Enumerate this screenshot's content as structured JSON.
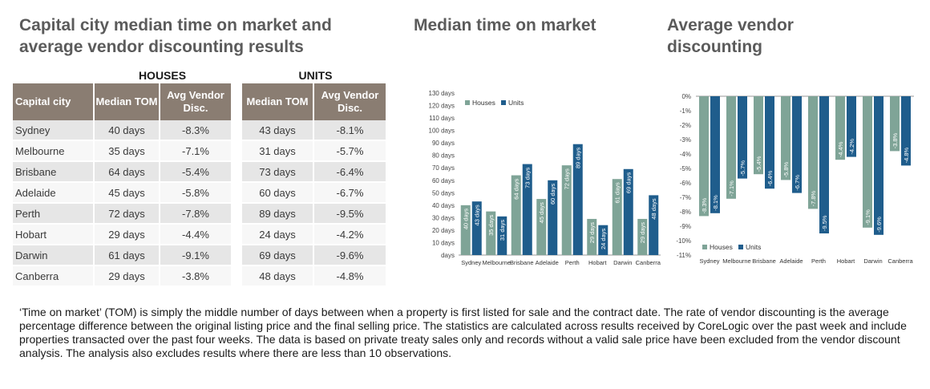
{
  "header": {
    "main_title": "Capital city median time on market and average vendor discounting results",
    "houses_label": "HOUSES",
    "units_label": "UNITS"
  },
  "table": {
    "col_city": "Capital city",
    "col_median_tom": "Median TOM",
    "col_avg_disc": "Avg Vendor Disc.",
    "rows": [
      {
        "city": "Sydney",
        "h_tom": "40 days",
        "h_disc": "-8.3%",
        "u_tom": "43 days",
        "u_disc": "-8.1%"
      },
      {
        "city": "Melbourne",
        "h_tom": "35 days",
        "h_disc": "-7.1%",
        "u_tom": "31 days",
        "u_disc": "-5.7%"
      },
      {
        "city": "Brisbane",
        "h_tom": "64 days",
        "h_disc": "-5.4%",
        "u_tom": "73 days",
        "u_disc": "-6.4%"
      },
      {
        "city": "Adelaide",
        "h_tom": "45 days",
        "h_disc": "-5.8%",
        "u_tom": "60 days",
        "u_disc": "-6.7%"
      },
      {
        "city": "Perth",
        "h_tom": "72 days",
        "h_disc": "-7.8%",
        "u_tom": "89 days",
        "u_disc": "-9.5%"
      },
      {
        "city": "Hobart",
        "h_tom": "29 days",
        "h_disc": "-4.4%",
        "u_tom": "24 days",
        "u_disc": "-4.2%"
      },
      {
        "city": "Darwin",
        "h_tom": "61 days",
        "h_disc": "-9.1%",
        "u_tom": "69 days",
        "u_disc": "-9.6%"
      },
      {
        "city": "Canberra",
        "h_tom": "29 days",
        "h_disc": "-3.8%",
        "u_tom": "48 days",
        "u_disc": "-4.8%"
      }
    ]
  },
  "colors": {
    "houses": "#7fa497",
    "units": "#1f5d8c",
    "header_bg": "#8a7d72"
  },
  "chart_data": [
    {
      "type": "bar",
      "title": "Median time on market",
      "categories": [
        "Sydney",
        "Melbourne",
        "Brisbane",
        "Adelaide",
        "Perth",
        "Hobart",
        "Darwin",
        "Canberra"
      ],
      "series": [
        {
          "name": "Houses",
          "values": [
            40,
            35,
            64,
            45,
            72,
            29,
            61,
            29
          ],
          "labels": [
            "40 days",
            "35 days",
            "64 days",
            "45 days",
            "72 days",
            "29 days",
            "61 days",
            "29 days"
          ]
        },
        {
          "name": "Units",
          "values": [
            43,
            31,
            73,
            60,
            89,
            24,
            69,
            48
          ],
          "labels": [
            "43 days",
            "31 days",
            "73 days",
            "60 days",
            "89 days",
            "24 days",
            "69 days",
            "48 days"
          ]
        }
      ],
      "ylim": [
        0,
        130
      ],
      "yticks": [
        "days",
        "10 days",
        "20 days",
        "30 days",
        "40 days",
        "50 days",
        "60 days",
        "70 days",
        "80 days",
        "90 days",
        "100 days",
        "110 days",
        "120 days",
        "130 days"
      ],
      "legend": "top-left",
      "xlabel": "",
      "ylabel": ""
    },
    {
      "type": "bar",
      "title": "Average vendor discounting",
      "categories": [
        "Sydney",
        "Melbourne",
        "Brisbane",
        "Adelaide",
        "Perth",
        "Hobart",
        "Darwin",
        "Canberra"
      ],
      "series": [
        {
          "name": "Houses",
          "values": [
            -8.3,
            -7.1,
            -5.4,
            -5.8,
            -7.8,
            -4.4,
            -9.1,
            -3.8
          ],
          "labels": [
            "-8.3%",
            "-7.1%",
            "-5.4%",
            "-5.8%",
            "-7.8%",
            "-4.4%",
            "-9.1%",
            "-3.8%"
          ]
        },
        {
          "name": "Units",
          "values": [
            -8.1,
            -5.7,
            -6.4,
            -6.7,
            -9.5,
            -4.2,
            -9.6,
            -4.8
          ],
          "labels": [
            "-8.1%",
            "-5.7%",
            "-6.4%",
            "-6.7%",
            "-9.5%",
            "-4.2%",
            "-9.6%",
            "-4.8%"
          ]
        }
      ],
      "ylim": [
        -11,
        0
      ],
      "yticks": [
        "0%",
        "-1%",
        "-2%",
        "-3%",
        "-4%",
        "-5%",
        "-6%",
        "-7%",
        "-8%",
        "-9%",
        "-10%",
        "-11%"
      ],
      "legend": "bottom-left",
      "xlabel": "",
      "ylabel": ""
    }
  ],
  "footnote": "‘Time on market’ (TOM) is simply the middle number of days between when a property is first listed for sale and the contract date.  The rate of vendor discounting is the average percentage difference between the original listing price and the final selling price.  The statistics are calculated across results received by CoreLogic over the past week and include properties transacted over the past four weeks. The data is based on private treaty sales only and records without a valid sale price have been excluded from the vendor discount analysis. The analysis also excludes results where there are less than 10 observations."
}
